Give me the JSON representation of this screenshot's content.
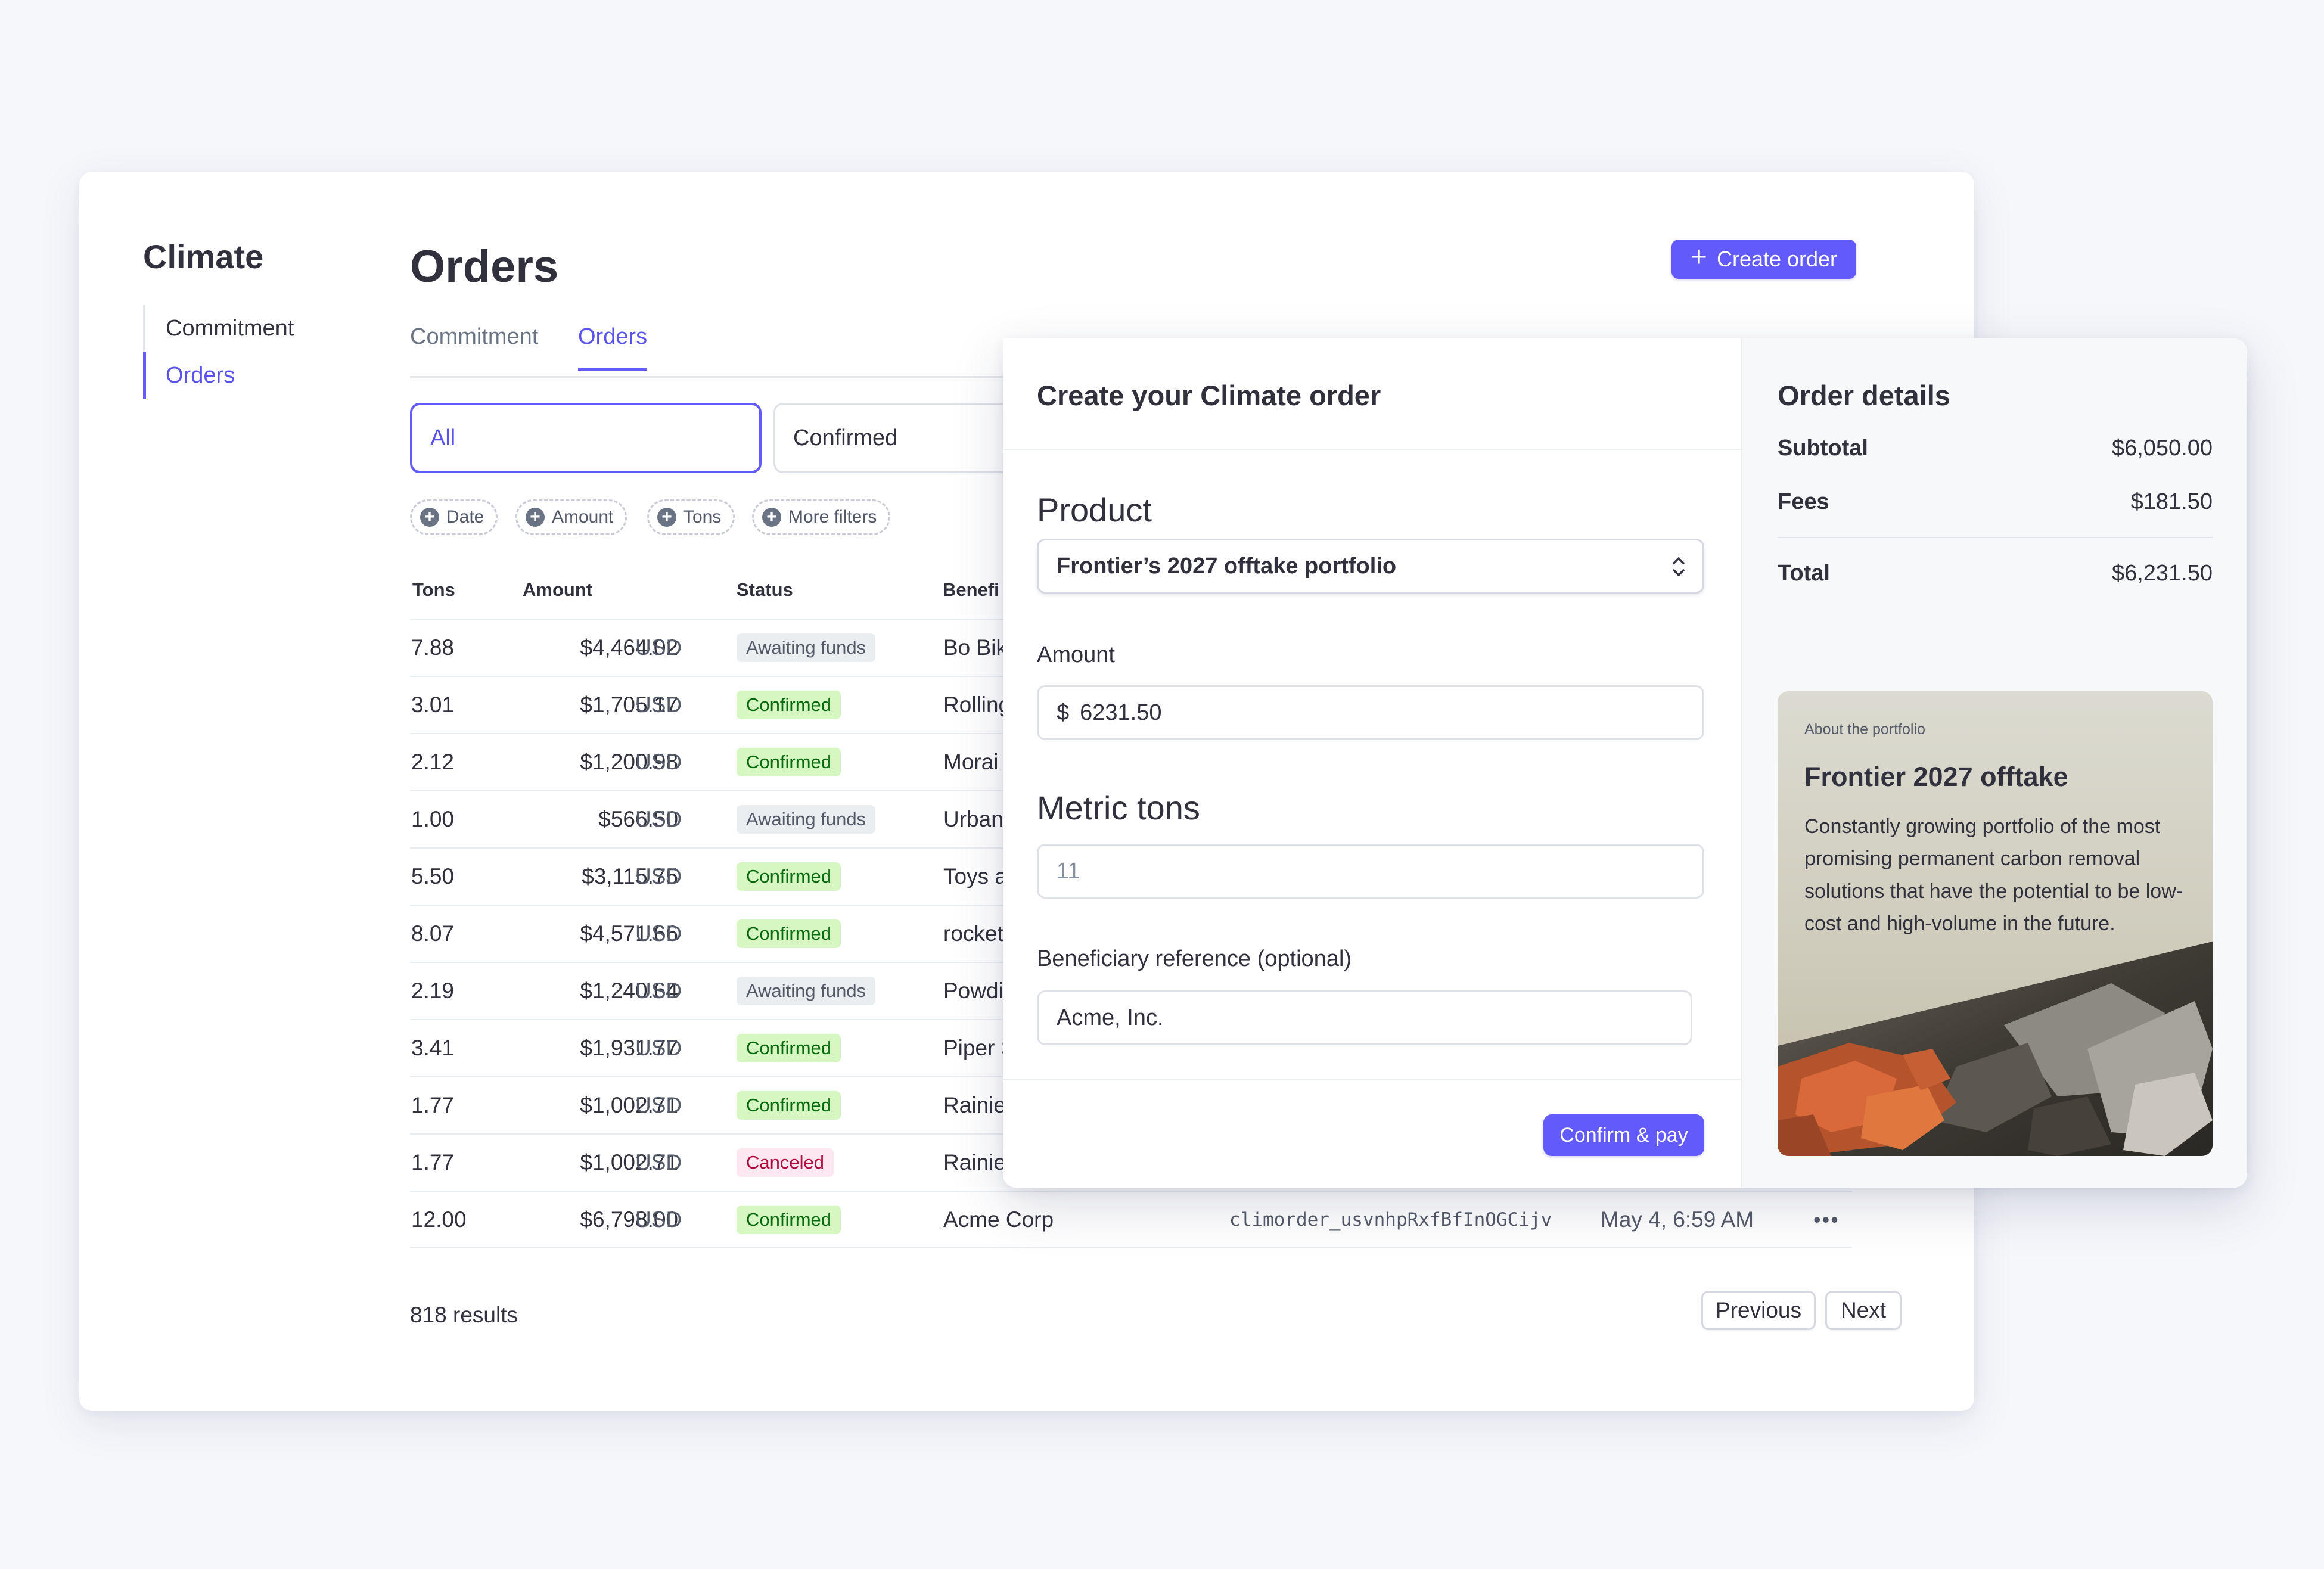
{
  "sidebar": {
    "title": "Climate",
    "items": [
      {
        "label": "Commitment",
        "active": false
      },
      {
        "label": "Orders",
        "active": true
      }
    ]
  },
  "header": {
    "title": "Orders",
    "create_button": "Create order"
  },
  "tabs": [
    {
      "label": "Commitment",
      "active": false
    },
    {
      "label": "Orders",
      "active": true
    }
  ],
  "segments": [
    {
      "label": "All",
      "active": true
    },
    {
      "label": "Confirmed",
      "active": false
    }
  ],
  "filters": [
    "Date",
    "Amount",
    "Tons",
    "More filters"
  ],
  "table": {
    "columns": [
      "Tons",
      "Amount",
      "Status",
      "Benefi"
    ],
    "rows": [
      {
        "tons": "7.88",
        "amount": "$4,464.02",
        "currency": "USD",
        "status": "Awaiting funds",
        "status_type": "await",
        "beneficiary": "Bo Bik"
      },
      {
        "tons": "3.01",
        "amount": "$1,705.17",
        "currency": "USD",
        "status": "Confirmed",
        "status_type": "conf",
        "beneficiary": "Rolling"
      },
      {
        "tons": "2.12",
        "amount": "$1,200.98",
        "currency": "USD",
        "status": "Confirmed",
        "status_type": "conf",
        "beneficiary": "Morai"
      },
      {
        "tons": "1.00",
        "amount": "$566.50",
        "currency": "USD",
        "status": "Awaiting funds",
        "status_type": "await",
        "beneficiary": "Urban"
      },
      {
        "tons": "5.50",
        "amount": "$3,115.75",
        "currency": "USD",
        "status": "Confirmed",
        "status_type": "conf",
        "beneficiary": "Toys a"
      },
      {
        "tons": "8.07",
        "amount": "$4,571.66",
        "currency": "USD",
        "status": "Confirmed",
        "status_type": "conf",
        "beneficiary": "rocket"
      },
      {
        "tons": "2.19",
        "amount": "$1,240.64",
        "currency": "USD",
        "status": "Awaiting funds",
        "status_type": "await",
        "beneficiary": "Powdi"
      },
      {
        "tons": "3.41",
        "amount": "$1,931.77",
        "currency": "USD",
        "status": "Confirmed",
        "status_type": "conf",
        "beneficiary": "Piper S"
      },
      {
        "tons": "1.77",
        "amount": "$1,002.71",
        "currency": "USD",
        "status": "Confirmed",
        "status_type": "conf",
        "beneficiary": "Rainie"
      },
      {
        "tons": "1.77",
        "amount": "$1,002.71",
        "currency": "USD",
        "status": "Canceled",
        "status_type": "canc",
        "beneficiary": "Rainie"
      },
      {
        "tons": "12.00",
        "amount": "$6,798.00",
        "currency": "USD",
        "status": "Confirmed",
        "status_type": "conf",
        "beneficiary": "Acme Corp",
        "id": "climorder_usvnhpRxfBfInOGCijv",
        "date": "May 4, 6:59 AM",
        "more": "•••"
      }
    ]
  },
  "pagination": {
    "results": "818 results",
    "previous": "Previous",
    "next": "Next"
  },
  "modal": {
    "title": "Create your Climate order",
    "product_label": "Product",
    "product_value": "Frontier’s 2027 offtake portfolio",
    "amount_label": "Amount",
    "amount_prefix": "$",
    "amount_value": "6231.50",
    "tons_label": "Metric tons",
    "tons_placeholder": "11",
    "beneficiary_label": "Beneficiary reference (optional)",
    "beneficiary_value": "Acme, Inc.",
    "confirm_button": "Confirm & pay"
  },
  "order_details": {
    "title": "Order details",
    "subtotal_label": "Subtotal",
    "subtotal": "$6,050.00",
    "fees_label": "Fees",
    "fees": "$181.50",
    "total_label": "Total",
    "total": "$6,231.50"
  },
  "portfolio": {
    "kicker": "About the portfolio",
    "title": "Frontier 2027 offtake",
    "description": "Constantly growing portfolio of the most promising permanent carbon removal solutions that have the potential to be low-cost and high-volume in the future."
  },
  "colors": {
    "accent": "#625afa",
    "confirmed_bg": "#d7f7c2",
    "confirmed_text": "#05690d",
    "canceled_bg": "#ffe7f2",
    "canceled_text": "#b3093c"
  },
  "icons": {
    "create": "plus-icon",
    "filter": "plus-circle-icon",
    "select": "chevron-updown-icon",
    "more": "ellipsis-icon"
  }
}
